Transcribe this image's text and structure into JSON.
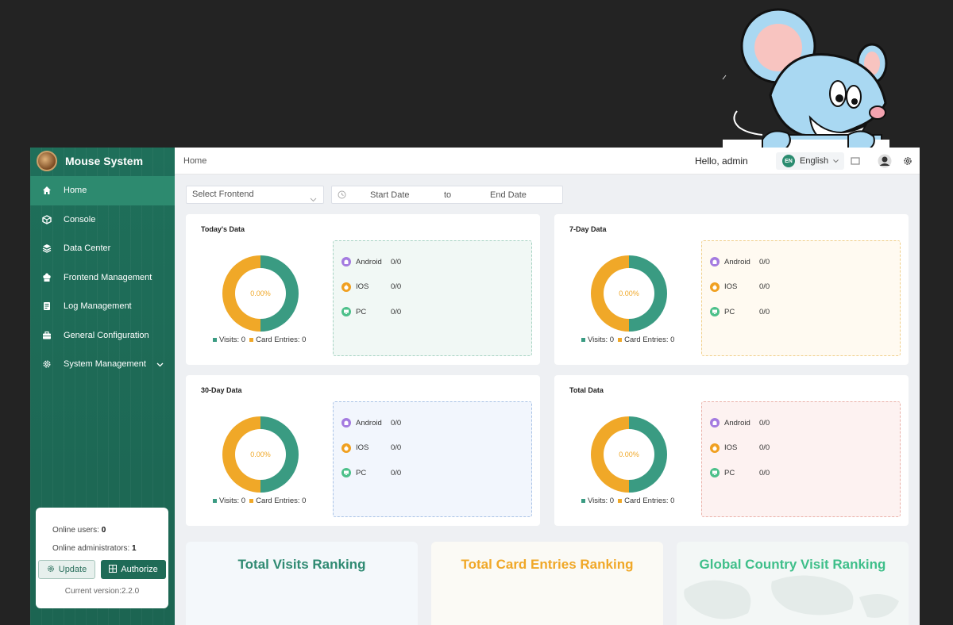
{
  "sidebar": {
    "brand": "Mouse System",
    "items": [
      {
        "label": "Home",
        "icon": "home-icon"
      },
      {
        "label": "Console",
        "icon": "cube-icon"
      },
      {
        "label": "Data Center",
        "icon": "layers-icon"
      },
      {
        "label": "Frontend Management",
        "icon": "chef-hat-icon"
      },
      {
        "label": "Log Management",
        "icon": "document-icon"
      },
      {
        "label": "General Configuration",
        "icon": "briefcase-icon"
      },
      {
        "label": "System Management",
        "icon": "gear-icon"
      }
    ],
    "online": {
      "users_label": "Online users:",
      "users_value": "0",
      "admins_label": "Online administrators:",
      "admins_value": "1",
      "update_label": "Update",
      "authorize_label": "Authorize",
      "version": "Current version:2.2.0"
    }
  },
  "header": {
    "breadcrumb": "Home",
    "greeting": "Hello, admin",
    "language": "English",
    "language_badge": "EN"
  },
  "filters": {
    "frontend_placeholder": "Select Frontend",
    "start_date": "Start Date",
    "to": "to",
    "end_date": "End Date"
  },
  "stats": [
    {
      "title": "Today's Data",
      "percent": "0.00%",
      "visits_label": "Visits: 0",
      "card_label": "Card Entries: 0",
      "platforms": [
        {
          "name": "Android",
          "value": "0/0"
        },
        {
          "name": "IOS",
          "value": "0/0"
        },
        {
          "name": "PC",
          "value": "0/0"
        }
      ]
    },
    {
      "title": "7-Day Data",
      "percent": "0.00%",
      "visits_label": "Visits: 0",
      "card_label": "Card Entries: 0",
      "platforms": [
        {
          "name": "Android",
          "value": "0/0"
        },
        {
          "name": "IOS",
          "value": "0/0"
        },
        {
          "name": "PC",
          "value": "0/0"
        }
      ]
    },
    {
      "title": "30-Day Data",
      "percent": "0.00%",
      "visits_label": "Visits: 0",
      "card_label": "Card Entries: 0",
      "platforms": [
        {
          "name": "Android",
          "value": "0/0"
        },
        {
          "name": "IOS",
          "value": "0/0"
        },
        {
          "name": "PC",
          "value": "0/0"
        }
      ]
    },
    {
      "title": "Total Data",
      "percent": "0.00%",
      "visits_label": "Visits: 0",
      "card_label": "Card Entries: 0",
      "platforms": [
        {
          "name": "Android",
          "value": "0/0"
        },
        {
          "name": "IOS",
          "value": "0/0"
        },
        {
          "name": "PC",
          "value": "0/0"
        }
      ]
    }
  ],
  "rankings": [
    {
      "title": "Total Visits Ranking"
    },
    {
      "title": "Total Card Entries Ranking"
    },
    {
      "title": "Global Country Visit Ranking"
    }
  ],
  "colors": {
    "primary": "#1f6b57",
    "visits": "#3a9b82",
    "card_entries": "#f0a828",
    "android": "#a47be0",
    "ios": "#f0a020",
    "pc": "#4cc08a"
  }
}
